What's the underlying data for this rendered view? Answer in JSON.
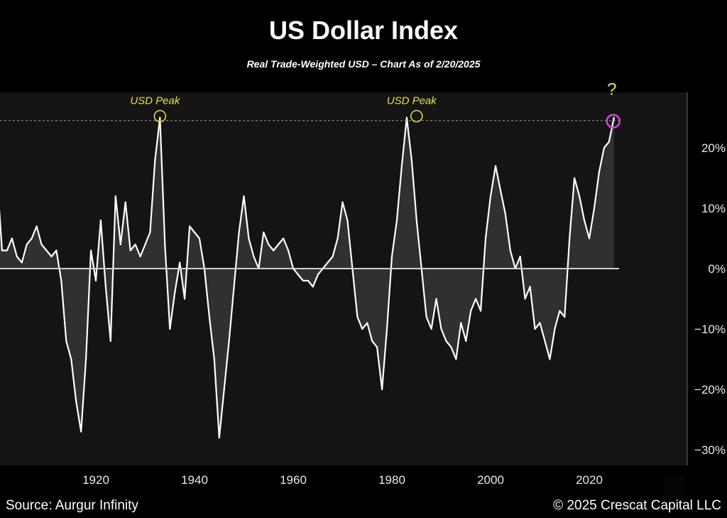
{
  "header": {
    "title": "US Dollar Index",
    "subtitle": "Real Trade-Weighted USD – Chart As of 2/20/2025"
  },
  "footer": {
    "source": "Source: Aurgur Infinity",
    "copyright": "© 2025 Crescat Capital LLC"
  },
  "colors": {
    "background": "#000000",
    "panel": "#141414",
    "line": "#ffffff",
    "zero_line": "#d0d0d0",
    "annotation": "#e8e23a",
    "current_marker": "#e040e0"
  },
  "chart_data": {
    "type": "area",
    "title": "US Dollar Index",
    "subtitle": "Real Trade-Weighted USD – Chart As of 2/20/2025",
    "xlabel": "",
    "ylabel": "",
    "xlim": [
      1900,
      2025
    ],
    "ylim": [
      -30,
      30
    ],
    "x_ticks": [
      1920,
      1940,
      1960,
      1980,
      2000,
      2020
    ],
    "x_tick_labels": [
      "1920",
      "1940",
      "1960",
      "1980",
      "2000",
      "2020"
    ],
    "y_ticks": [
      20,
      10,
      0,
      -10,
      -20,
      -30
    ],
    "y_tick_labels": [
      "20%",
      "10%",
      "0%",
      "−10%",
      "−20%",
      "−30%"
    ],
    "grid": false,
    "reference_lines": [
      {
        "type": "horizontal",
        "y": 0,
        "style": "solid"
      },
      {
        "type": "horizontal",
        "y": 24.5,
        "style": "dotted"
      }
    ],
    "series": [
      {
        "x": [
          1900,
          1901,
          1902,
          1903,
          1904,
          1905,
          1906,
          1907,
          1908,
          1909,
          1910,
          1911,
          1912,
          1913,
          1914,
          1915,
          1916,
          1917,
          1918,
          1919,
          1920,
          1921,
          1922,
          1923,
          1924,
          1925,
          1926,
          1927,
          1928,
          1929,
          1930,
          1931,
          1932,
          1933,
          1934,
          1935,
          1936,
          1937,
          1938,
          1939,
          1940,
          1941,
          1942,
          1943,
          1944,
          1945,
          1946,
          1947,
          1948,
          1949,
          1950,
          1951,
          1952,
          1953,
          1954,
          1955,
          1956,
          1957,
          1958,
          1959,
          1960,
          1961,
          1962,
          1963,
          1964,
          1965,
          1966,
          1967,
          1968,
          1969,
          1970,
          1971,
          1972,
          1973,
          1974,
          1975,
          1976,
          1977,
          1978,
          1979,
          1980,
          1981,
          1982,
          1983,
          1984,
          1985,
          1986,
          1987,
          1988,
          1989,
          1990,
          1991,
          1992,
          1993,
          1994,
          1995,
          1996,
          1997,
          1998,
          1999,
          2000,
          2001,
          2002,
          2003,
          2004,
          2005,
          2006,
          2007,
          2008,
          2009,
          2010,
          2011,
          2012,
          2013,
          2014,
          2015,
          2016,
          2017,
          2018,
          2019,
          2020,
          2021,
          2022,
          2023,
          2024,
          2025
        ],
        "values": [
          15,
          3,
          3,
          5,
          2,
          1,
          4,
          5,
          7,
          4,
          3,
          2,
          3,
          -2,
          -12,
          -15,
          -22,
          -27,
          -15,
          3,
          -2,
          8,
          -3,
          -12,
          12,
          4,
          11,
          3,
          4,
          2,
          4,
          6,
          18,
          25,
          4,
          -10,
          -4,
          1,
          -5,
          7,
          6,
          5,
          0,
          -8,
          -15,
          -28,
          -20,
          -12,
          -3,
          6,
          12,
          5,
          2,
          0,
          6,
          4,
          3,
          4,
          5,
          3,
          0,
          -1,
          -2,
          -2,
          -3,
          -1,
          0,
          1,
          2,
          5,
          11,
          8,
          0,
          -8,
          -10,
          -9,
          -12,
          -13,
          -20,
          -10,
          2,
          8,
          17,
          25,
          18,
          8,
          0,
          -8,
          -10,
          -5,
          -10,
          -12,
          -13,
          -15,
          -9,
          -12,
          -7,
          -5,
          -7,
          5,
          12,
          17,
          13,
          9,
          3,
          0,
          2,
          -5,
          -3,
          -10,
          -9,
          -12,
          -15,
          -10,
          -7,
          -8,
          5,
          15,
          12,
          8,
          5,
          10,
          16,
          20,
          21,
          25
        ]
      }
    ],
    "annotations": [
      {
        "text": "USD Peak",
        "x": 1933,
        "y": 25
      },
      {
        "text": "USD Peak",
        "x": 1985,
        "y": 25
      },
      {
        "text": "?",
        "x": 2025,
        "y": 25
      }
    ]
  }
}
